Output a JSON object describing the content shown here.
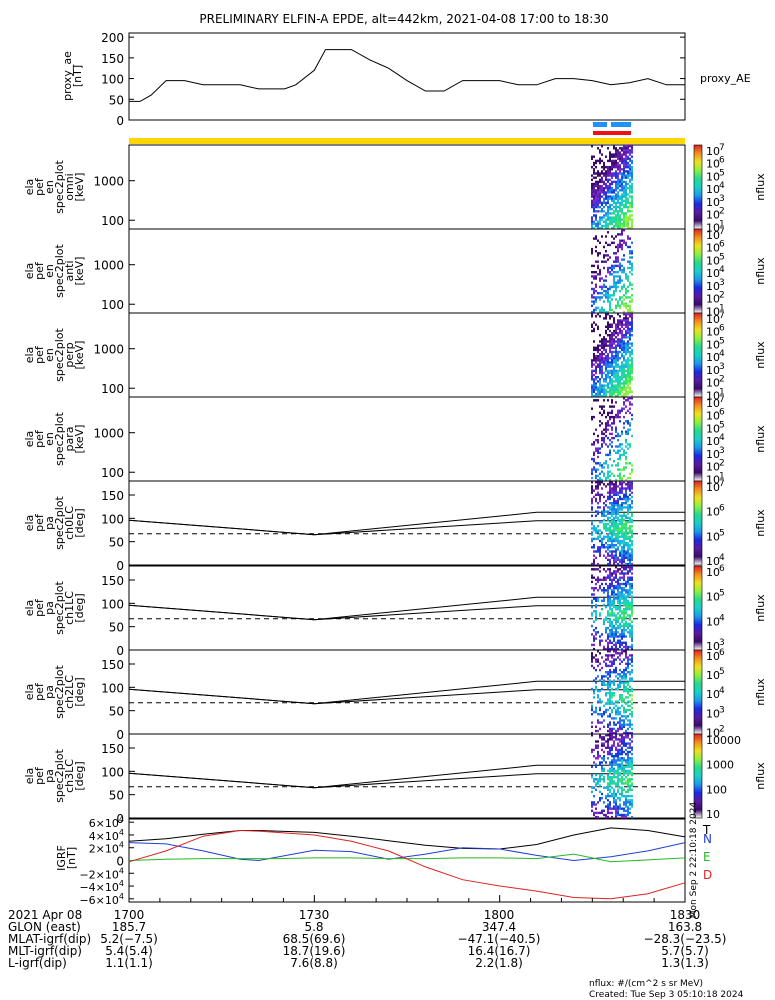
{
  "title": "PRELIMINARY ELFIN-A EPDE, alt=442km, 2021-04-08 17:00 to 18:30",
  "ae_panel": {
    "ylabel_lines": [
      "proxy_ae",
      "[nT]"
    ],
    "yticks": [
      "200",
      "150",
      "100",
      "50",
      "0"
    ],
    "legend": "proxy_AE"
  },
  "spec_panels": [
    {
      "ylabel_lines": [
        "ela",
        "pef",
        "en",
        "spec2plot",
        "omni",
        "[keV]"
      ],
      "yticks": [
        "1000",
        "100"
      ]
    },
    {
      "ylabel_lines": [
        "ela",
        "pef",
        "en",
        "spec2plot",
        "anti",
        "[keV]"
      ],
      "yticks": [
        "1000",
        "100"
      ]
    },
    {
      "ylabel_lines": [
        "ela",
        "pef",
        "en",
        "spec2plot",
        "perp",
        "[keV]"
      ],
      "yticks": [
        "1000",
        "100"
      ]
    },
    {
      "ylabel_lines": [
        "ela",
        "pef",
        "en",
        "spec2plot",
        "para",
        "[keV]"
      ],
      "yticks": [
        "1000",
        "100"
      ]
    },
    {
      "ylabel_lines": [
        "ela",
        "pef",
        "pa",
        "spec2plot",
        "ch0LC",
        "[deg]"
      ],
      "yticks": [
        "150",
        "100",
        "50",
        "0"
      ]
    },
    {
      "ylabel_lines": [
        "ela",
        "pef",
        "pa",
        "spec2plot",
        "ch1LC",
        "[deg]"
      ],
      "yticks": [
        "150",
        "100",
        "50",
        "0"
      ]
    },
    {
      "ylabel_lines": [
        "ela",
        "pef",
        "pa",
        "spec2plot",
        "ch2LC",
        "[deg]"
      ],
      "yticks": [
        "150",
        "100",
        "50",
        "0"
      ]
    },
    {
      "ylabel_lines": [
        "ela",
        "pef",
        "pa",
        "spec2plot",
        "ch3LC",
        "[deg]"
      ],
      "yticks": [
        "150",
        "100",
        "50",
        "0"
      ]
    }
  ],
  "colorbars": [
    {
      "label": "nflux",
      "ticks": [
        "7",
        "6",
        "5",
        "4",
        "3",
        "2",
        "1"
      ]
    },
    {
      "label": "nflux",
      "ticks": [
        "7",
        "6",
        "5",
        "4",
        "3",
        "2",
        "1"
      ]
    },
    {
      "label": "nflux",
      "ticks": [
        "7",
        "6",
        "5",
        "4",
        "3",
        "2",
        "1"
      ]
    },
    {
      "label": "nflux",
      "ticks": [
        "7",
        "6",
        "5",
        "4",
        "3",
        "2",
        "1"
      ]
    },
    {
      "label": "nflux",
      "ticks": [
        "7",
        "6",
        "5",
        "4"
      ]
    },
    {
      "label": "nflux",
      "ticks": [
        "6",
        "5",
        "4",
        "3"
      ]
    },
    {
      "label": "nflux",
      "ticks": [
        "6",
        "5",
        "4",
        "3",
        "2"
      ]
    },
    {
      "label": "nflux",
      "ticks_plain": [
        "10000",
        "1000",
        "100",
        "10"
      ]
    }
  ],
  "igrf_panel": {
    "ylabel_lines": [
      "IGRF",
      "[nT]"
    ],
    "yticks": [
      "6",
      "4",
      "2",
      "0",
      "−2",
      "−4",
      "−6"
    ],
    "legend": [
      {
        "label": "T",
        "color": "#000000"
      },
      {
        "label": "N",
        "color": "#1f3fd0"
      },
      {
        "label": "E",
        "color": "#22bb22"
      },
      {
        "label": "D",
        "color": "#dd2222"
      }
    ],
    "side_stamp": "Mon Sep  2 22:10:18 2024"
  },
  "footer": {
    "rows": [
      {
        "label": "2021 Apr 08",
        "values": [
          "1700",
          "1730",
          "1800",
          "1830"
        ]
      },
      {
        "label": "GLON (east)",
        "values": [
          "185.7",
          "5.8",
          "347.4",
          "163.8"
        ]
      },
      {
        "label": "MLAT-igrf(dip)",
        "values": [
          "5.2(−7.5)",
          "68.5(69.6)",
          "−47.1(−40.5)",
          "−28.3(−23.5)"
        ]
      },
      {
        "label": "MLT-igrf(dip)",
        "values": [
          "5.4(5.4)",
          "18.7(19.6)",
          "16.4(16.7)",
          "5.7(5.7)"
        ]
      },
      {
        "label": "L-igrf(dip)",
        "values": [
          "1.1(1.1)",
          "7.6(8.8)",
          "2.2(1.8)",
          "1.3(1.3)"
        ]
      }
    ],
    "unit_note": "nflux: #/(cm^2 s sr MeV)",
    "created": "Created: Tue Sep  3 05:10:18 2024"
  },
  "colors": {
    "sci_zone_yellow": "#ffd700",
    "blue_bar": "#1e90ff",
    "red_bar": "#ee1111"
  },
  "chart_data": [
    {
      "type": "line",
      "panel": "proxy_ae",
      "x_unit": "UT hours (2021-04-08)",
      "xlim": [
        17.0,
        18.5
      ],
      "ylim": [
        0,
        210
      ],
      "series": [
        {
          "name": "proxy_AE",
          "x": [
            17.0,
            17.03,
            17.06,
            17.1,
            17.15,
            17.2,
            17.25,
            17.3,
            17.35,
            17.42,
            17.45,
            17.5,
            17.53,
            17.55,
            17.6,
            17.65,
            17.7,
            17.75,
            17.8,
            17.85,
            17.9,
            17.95,
            18.0,
            18.05,
            18.1,
            18.15,
            18.2,
            18.25,
            18.3,
            18.35,
            18.4,
            18.45,
            18.5
          ],
          "y": [
            45,
            45,
            60,
            95,
            95,
            85,
            85,
            85,
            75,
            75,
            85,
            120,
            170,
            170,
            170,
            145,
            125,
            95,
            70,
            70,
            95,
            95,
            95,
            85,
            85,
            100,
            100,
            95,
            85,
            90,
            100,
            85,
            85
          ]
        }
      ]
    },
    {
      "type": "line",
      "panel": "igrf",
      "x_unit": "UT hours (2021-04-08)",
      "xlim": [
        17.0,
        18.5
      ],
      "ylim": [
        -65000,
        65000
      ],
      "series": [
        {
          "name": "T",
          "x": [
            17.0,
            17.1,
            17.2,
            17.3,
            17.35,
            17.5,
            17.6,
            17.7,
            17.8,
            17.9,
            18.0,
            18.1,
            18.2,
            18.3,
            18.4,
            18.5
          ],
          "y": [
            30000,
            34000,
            41000,
            47000,
            47000,
            44000,
            38000,
            31000,
            24000,
            19000,
            18000,
            25000,
            40000,
            51000,
            47000,
            37000
          ]
        },
        {
          "name": "N",
          "x": [
            17.0,
            17.1,
            17.2,
            17.3,
            17.35,
            17.5,
            17.6,
            17.7,
            17.8,
            17.9,
            18.0,
            18.1,
            18.2,
            18.3,
            18.4,
            18.5
          ],
          "y": [
            28000,
            26000,
            15000,
            2000,
            0,
            16000,
            14000,
            2000,
            10000,
            20000,
            18000,
            8000,
            0,
            6000,
            15000,
            28000
          ]
        },
        {
          "name": "E",
          "x": [
            17.0,
            17.1,
            17.2,
            17.3,
            17.4,
            17.5,
            17.6,
            17.7,
            17.8,
            17.9,
            18.0,
            18.1,
            18.2,
            18.3,
            18.4,
            18.5
          ],
          "y": [
            0,
            2000,
            3000,
            3000,
            3000,
            4000,
            4000,
            3000,
            3000,
            4000,
            4000,
            3000,
            10000,
            -2000,
            1000,
            4000
          ]
        },
        {
          "name": "D",
          "x": [
            17.0,
            17.1,
            17.2,
            17.3,
            17.35,
            17.5,
            17.6,
            17.7,
            17.8,
            17.9,
            18.0,
            18.1,
            18.2,
            18.3,
            18.4,
            18.5
          ],
          "y": [
            -2000,
            15000,
            38000,
            47000,
            46000,
            40000,
            30000,
            15000,
            -10000,
            -30000,
            -40000,
            -48000,
            -58000,
            -60000,
            -52000,
            -35000
          ]
        }
      ]
    },
    {
      "type": "line",
      "panel": "pitch-angle loss cone (panels ch0LC-ch3LC)",
      "x_unit": "UT hours (2021-04-08)",
      "xlim": [
        17.0,
        18.5
      ],
      "ylim": [
        0,
        180
      ],
      "series": [
        {
          "name": "",
          "x": [
            17.0,
            17.5,
            18.1,
            18.5
          ],
          "y": [
            96,
            65,
            113,
            113
          ]
        },
        {
          "name": "",
          "x": [
            17.0,
            17.5,
            18.1,
            18.5
          ],
          "y": [
            96,
            65,
            95,
            95
          ]
        },
        {
          "name": "",
          "x": [
            17.0,
            18.5
          ],
          "y": [
            67,
            67
          ]
        }
      ]
    }
  ]
}
